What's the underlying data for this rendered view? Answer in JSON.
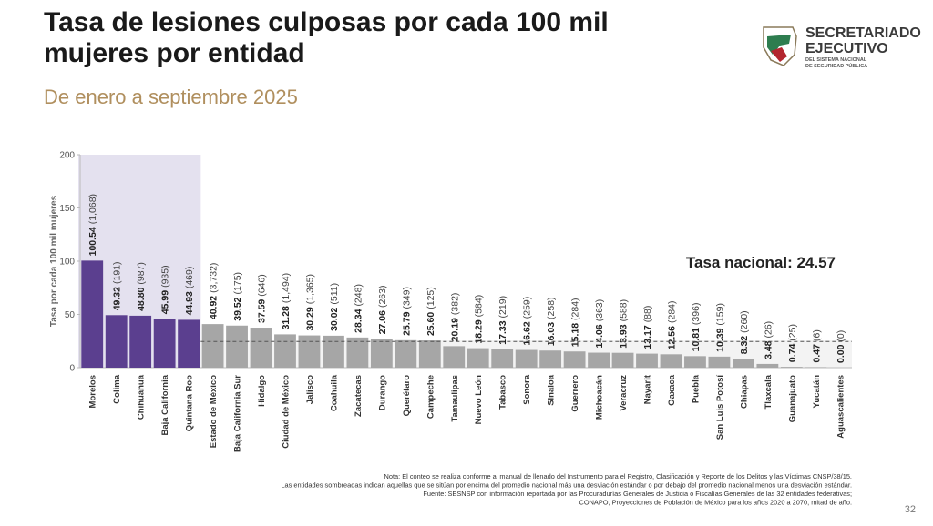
{
  "header": {
    "title": "Tasa de lesiones culposas por cada 100 mil mujeres por entidad",
    "subtitle": "De enero a septiembre 2025"
  },
  "logo": {
    "line1": "SECRETARIADO",
    "line2": "EJECUTIVO",
    "line3": "DEL SISTEMA NACIONAL",
    "line4": "DE SEGURIDAD PÚBLICA"
  },
  "chart_data": {
    "type": "bar",
    "y_label": "Tasa por cada 100 mil mujeres",
    "categories": [
      "Morelos",
      "Colima",
      "Chihuahua",
      "Baja California",
      "Quintana Roo",
      "Estado de México",
      "Baja California Sur",
      "Hidalgo",
      "Ciudad de México",
      "Jalisco",
      "Coahuila",
      "Zacatecas",
      "Durango",
      "Querétaro",
      "Campeche",
      "Tamaulipas",
      "Nuevo León",
      "Tabasco",
      "Sonora",
      "Sinaloa",
      "Guerrero",
      "Michoacán",
      "Veracruz",
      "Nayarit",
      "Oaxaca",
      "Puebla",
      "San Luis Potosí",
      "Chiapas",
      "Tlaxcala",
      "Guanajuato",
      "Yucatán",
      "Aguascalientes"
    ],
    "values": [
      100.54,
      49.32,
      48.8,
      45.99,
      44.93,
      40.92,
      39.52,
      37.59,
      31.28,
      30.29,
      30.02,
      28.34,
      27.06,
      25.79,
      25.6,
      20.19,
      18.29,
      17.33,
      16.62,
      16.03,
      15.18,
      14.06,
      13.93,
      13.17,
      12.56,
      10.81,
      10.39,
      8.32,
      3.48,
      0.74,
      0.47,
      0.0
    ],
    "value_labels": [
      "100.54",
      "49.32",
      "48.80",
      "45.99",
      "44.93",
      "40.92",
      "39.52",
      "37.59",
      "31.28",
      "30.29",
      "30.02",
      "28.34",
      "27.06",
      "25.79",
      "25.60",
      "20.19",
      "18.29",
      "17.33",
      "16.62",
      "16.03",
      "15.18",
      "14.06",
      "13.93",
      "13.17",
      "12.56",
      "10.81",
      "10.39",
      "8.32",
      "3.48",
      "0.74",
      "0.47",
      "0.00"
    ],
    "count_labels": [
      "(1,068)",
      "(191)",
      "(987)",
      "(935)",
      "(469)",
      "(3,732)",
      "(175)",
      "(646)",
      "(1,494)",
      "(1,365)",
      "(511)",
      "(248)",
      "(263)",
      "(349)",
      "(125)",
      "(382)",
      "(584)",
      "(219)",
      "(259)",
      "(258)",
      "(284)",
      "(363)",
      "(588)",
      "(88)",
      "(284)",
      "(396)",
      "(159)",
      "(260)",
      "(26)",
      "(25)",
      "(6)",
      "(0)"
    ],
    "colors": [
      "#5b3f8f",
      "#5b3f8f",
      "#5b3f8f",
      "#5b3f8f",
      "#5b3f8f",
      "#a6a6a6",
      "#a6a6a6",
      "#a6a6a6",
      "#a6a6a6",
      "#a6a6a6",
      "#a6a6a6",
      "#a6a6a6",
      "#a6a6a6",
      "#a6a6a6",
      "#a6a6a6",
      "#a6a6a6",
      "#a6a6a6",
      "#a6a6a6",
      "#a6a6a6",
      "#a6a6a6",
      "#a6a6a6",
      "#a6a6a6",
      "#a6a6a6",
      "#a6a6a6",
      "#a6a6a6",
      "#a6a6a6",
      "#a6a6a6",
      "#a6a6a6",
      "#a6a6a6",
      "#a6a6a6",
      "#a6a6a6",
      "#a6a6a6"
    ],
    "highlight_color": "#e4e1ef",
    "ylim": [
      0,
      200
    ],
    "yticks": [
      0,
      50,
      100,
      150,
      200
    ],
    "national_rate": 24.57,
    "national_rate_label": "Tasa nacional: 24.57"
  },
  "notes": [
    "Nota: El conteo se realiza conforme al manual de llenado del Instrumento para el Registro, Clasificación y Reporte de los Delitos y las Víctimas CNSP/38/15.",
    "Las entidades sombreadas indican aquellas que se sitúan por encima del promedio nacional más una desviación estándar o por debajo del promedio nacional menos una desviación estándar.",
    "Fuente: SESNSP con información reportada por las Procuradurías Generales de Justicia o Fiscalías Generales de las 32 entidades federativas;",
    "CONAPO, Proyecciones de Población de México para los años 2020 a 2070, mitad de año."
  ],
  "page_number": "32"
}
